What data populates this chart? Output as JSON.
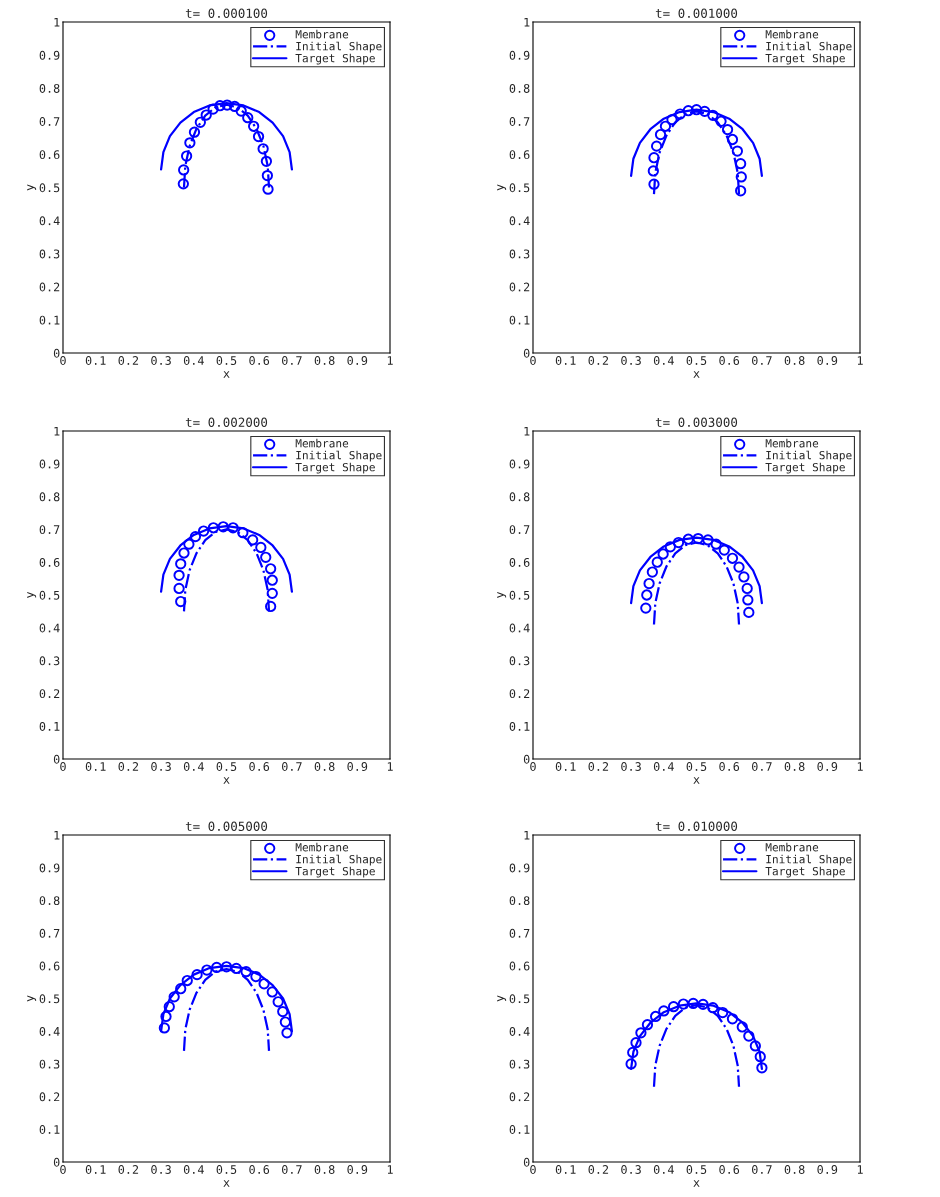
{
  "chart_data": [
    {
      "type": "scatter",
      "title": "t= 0.000100",
      "xlabel": "x",
      "ylabel": "y",
      "xlim": [
        0,
        1
      ],
      "ylim": [
        0,
        1
      ],
      "xticks": [
        0,
        0.1,
        0.2,
        0.3,
        0.4,
        0.5,
        0.6,
        0.7,
        0.8,
        0.9,
        1
      ],
      "yticks": [
        0,
        0.1,
        0.2,
        0.3,
        0.4,
        0.5,
        0.6,
        0.7,
        0.8,
        0.9,
        1
      ],
      "grid": false,
      "legend": "top right",
      "series": [
        {
          "name": "Membrane",
          "marker": "circle",
          "color": "#0000ff",
          "x": [
            0.368,
            0.369,
            0.378,
            0.388,
            0.402,
            0.42,
            0.438,
            0.459,
            0.48,
            0.502,
            0.525,
            0.545,
            0.565,
            0.583,
            0.598,
            0.612,
            0.622,
            0.625,
            0.627
          ],
          "values": [
            0.511,
            0.553,
            0.595,
            0.635,
            0.667,
            0.697,
            0.719,
            0.737,
            0.747,
            0.749,
            0.745,
            0.731,
            0.711,
            0.685,
            0.654,
            0.617,
            0.579,
            0.536,
            0.495
          ]
        },
        {
          "name": "Initial Shape",
          "type": "line",
          "line_style": "dashdot",
          "color": "#0000ff",
          "x": [
            0.37,
            0.374,
            0.387,
            0.408,
            0.435,
            0.466,
            0.5,
            0.534,
            0.565,
            0.592,
            0.613,
            0.626,
            0.63
          ],
          "values": [
            0.5,
            0.565,
            0.625,
            0.677,
            0.717,
            0.742,
            0.75,
            0.742,
            0.717,
            0.677,
            0.625,
            0.565,
            0.5
          ]
        },
        {
          "name": "Target Shape",
          "type": "line",
          "line_style": "solid",
          "color": "#0000ff",
          "x": [
            0.3,
            0.307,
            0.327,
            0.359,
            0.4,
            0.448,
            0.5,
            0.552,
            0.6,
            0.641,
            0.673,
            0.693,
            0.7
          ],
          "values": [
            0.555,
            0.607,
            0.655,
            0.696,
            0.728,
            0.748,
            0.755,
            0.748,
            0.728,
            0.696,
            0.655,
            0.607,
            0.555
          ]
        }
      ]
    },
    {
      "type": "scatter",
      "title": "t= 0.001000",
      "xlabel": "x",
      "ylabel": "y",
      "xlim": [
        0,
        1
      ],
      "ylim": [
        0,
        1
      ],
      "xticks": [
        0,
        0.1,
        0.2,
        0.3,
        0.4,
        0.5,
        0.6,
        0.7,
        0.8,
        0.9,
        1
      ],
      "yticks": [
        0,
        0.1,
        0.2,
        0.3,
        0.4,
        0.5,
        0.6,
        0.7,
        0.8,
        0.9,
        1
      ],
      "grid": false,
      "legend": "top right",
      "series": [
        {
          "name": "Membrane",
          "marker": "circle",
          "color": "#0000ff",
          "x": [
            0.37,
            0.368,
            0.37,
            0.378,
            0.39,
            0.405,
            0.425,
            0.45,
            0.475,
            0.5,
            0.525,
            0.55,
            0.575,
            0.595,
            0.61,
            0.625,
            0.635,
            0.637,
            0.635
          ],
          "values": [
            0.51,
            0.55,
            0.59,
            0.625,
            0.66,
            0.685,
            0.705,
            0.722,
            0.732,
            0.735,
            0.73,
            0.718,
            0.7,
            0.675,
            0.645,
            0.61,
            0.572,
            0.532,
            0.49
          ]
        },
        {
          "name": "Initial Shape",
          "type": "line",
          "line_style": "dashdot",
          "color": "#0000ff",
          "x": [
            0.37,
            0.374,
            0.387,
            0.408,
            0.435,
            0.466,
            0.5,
            0.534,
            0.565,
            0.592,
            0.613,
            0.626,
            0.63
          ],
          "values": [
            0.48,
            0.545,
            0.605,
            0.657,
            0.697,
            0.722,
            0.73,
            0.722,
            0.697,
            0.657,
            0.605,
            0.545,
            0.48
          ]
        },
        {
          "name": "Target Shape",
          "type": "line",
          "line_style": "solid",
          "color": "#0000ff",
          "x": [
            0.3,
            0.307,
            0.327,
            0.359,
            0.4,
            0.448,
            0.5,
            0.552,
            0.6,
            0.641,
            0.673,
            0.693,
            0.7
          ],
          "values": [
            0.535,
            0.587,
            0.635,
            0.676,
            0.708,
            0.728,
            0.735,
            0.728,
            0.708,
            0.676,
            0.635,
            0.587,
            0.535
          ]
        }
      ]
    },
    {
      "type": "scatter",
      "title": "t= 0.002000",
      "xlabel": "x",
      "ylabel": "y",
      "xlim": [
        0,
        1
      ],
      "ylim": [
        0,
        1
      ],
      "xticks": [
        0,
        0.1,
        0.2,
        0.3,
        0.4,
        0.5,
        0.6,
        0.7,
        0.8,
        0.9,
        1
      ],
      "yticks": [
        0,
        0.1,
        0.2,
        0.3,
        0.4,
        0.5,
        0.6,
        0.7,
        0.8,
        0.9,
        1
      ],
      "grid": false,
      "legend": "top right",
      "series": [
        {
          "name": "Membrane",
          "marker": "circle",
          "color": "#0000ff",
          "x": [
            0.36,
            0.355,
            0.355,
            0.36,
            0.37,
            0.385,
            0.405,
            0.43,
            0.46,
            0.49,
            0.52,
            0.55,
            0.58,
            0.605,
            0.62,
            0.635,
            0.64,
            0.64,
            0.635
          ],
          "values": [
            0.48,
            0.52,
            0.56,
            0.595,
            0.628,
            0.655,
            0.678,
            0.695,
            0.705,
            0.708,
            0.705,
            0.69,
            0.668,
            0.645,
            0.615,
            0.58,
            0.545,
            0.505,
            0.465
          ]
        },
        {
          "name": "Initial Shape",
          "type": "line",
          "line_style": "dashdot",
          "color": "#0000ff",
          "x": [
            0.37,
            0.374,
            0.387,
            0.408,
            0.435,
            0.466,
            0.5,
            0.534,
            0.565,
            0.592,
            0.613,
            0.626,
            0.63
          ],
          "values": [
            0.45,
            0.515,
            0.575,
            0.627,
            0.667,
            0.692,
            0.7,
            0.692,
            0.667,
            0.627,
            0.575,
            0.515,
            0.45
          ]
        },
        {
          "name": "Target Shape",
          "type": "line",
          "line_style": "solid",
          "color": "#0000ff",
          "x": [
            0.3,
            0.307,
            0.327,
            0.359,
            0.4,
            0.448,
            0.5,
            0.552,
            0.6,
            0.641,
            0.673,
            0.693,
            0.7
          ],
          "values": [
            0.51,
            0.562,
            0.61,
            0.651,
            0.683,
            0.703,
            0.71,
            0.703,
            0.683,
            0.651,
            0.61,
            0.562,
            0.51
          ]
        }
      ]
    },
    {
      "type": "scatter",
      "title": "t= 0.003000",
      "xlabel": "x",
      "ylabel": "y",
      "xlim": [
        0,
        1
      ],
      "ylim": [
        0,
        1
      ],
      "xticks": [
        0,
        0.1,
        0.2,
        0.3,
        0.4,
        0.5,
        0.6,
        0.7,
        0.8,
        0.9,
        1
      ],
      "yticks": [
        0,
        0.1,
        0.2,
        0.3,
        0.4,
        0.5,
        0.6,
        0.7,
        0.8,
        0.9,
        1
      ],
      "grid": false,
      "legend": "top right",
      "series": [
        {
          "name": "Membrane",
          "marker": "circle",
          "color": "#0000ff",
          "x": [
            0.345,
            0.348,
            0.355,
            0.365,
            0.38,
            0.398,
            0.42,
            0.445,
            0.475,
            0.505,
            0.535,
            0.56,
            0.585,
            0.61,
            0.63,
            0.645,
            0.655,
            0.657,
            0.66
          ],
          "values": [
            0.46,
            0.5,
            0.535,
            0.57,
            0.6,
            0.625,
            0.647,
            0.66,
            0.67,
            0.672,
            0.668,
            0.655,
            0.637,
            0.612,
            0.585,
            0.555,
            0.52,
            0.485,
            0.447
          ]
        },
        {
          "name": "Initial Shape",
          "type": "line",
          "line_style": "dashdot",
          "color": "#0000ff",
          "x": [
            0.37,
            0.374,
            0.387,
            0.408,
            0.435,
            0.466,
            0.5,
            0.534,
            0.565,
            0.592,
            0.613,
            0.626,
            0.63
          ],
          "values": [
            0.41,
            0.475,
            0.535,
            0.587,
            0.627,
            0.652,
            0.66,
            0.652,
            0.627,
            0.587,
            0.535,
            0.475,
            0.41
          ]
        },
        {
          "name": "Target Shape",
          "type": "line",
          "line_style": "solid",
          "color": "#0000ff",
          "x": [
            0.3,
            0.307,
            0.327,
            0.359,
            0.4,
            0.448,
            0.5,
            0.552,
            0.6,
            0.641,
            0.673,
            0.693,
            0.7
          ],
          "values": [
            0.475,
            0.527,
            0.575,
            0.616,
            0.648,
            0.668,
            0.675,
            0.668,
            0.648,
            0.616,
            0.575,
            0.527,
            0.475
          ]
        }
      ]
    },
    {
      "type": "scatter",
      "title": "t= 0.005000",
      "xlabel": "x",
      "ylabel": "y",
      "xlim": [
        0,
        1
      ],
      "ylim": [
        0,
        1
      ],
      "xticks": [
        0,
        0.1,
        0.2,
        0.3,
        0.4,
        0.5,
        0.6,
        0.7,
        0.8,
        0.9,
        1
      ],
      "yticks": [
        0,
        0.1,
        0.2,
        0.3,
        0.4,
        0.5,
        0.6,
        0.7,
        0.8,
        0.9,
        1
      ],
      "grid": false,
      "legend": "top right",
      "series": [
        {
          "name": "Membrane",
          "marker": "circle",
          "color": "#0000ff",
          "x": [
            0.31,
            0.315,
            0.325,
            0.34,
            0.36,
            0.38,
            0.41,
            0.44,
            0.47,
            0.5,
            0.53,
            0.56,
            0.59,
            0.615,
            0.64,
            0.658,
            0.672,
            0.68,
            0.685
          ],
          "values": [
            0.41,
            0.445,
            0.475,
            0.505,
            0.53,
            0.555,
            0.573,
            0.587,
            0.595,
            0.597,
            0.592,
            0.582,
            0.567,
            0.545,
            0.52,
            0.49,
            0.46,
            0.428,
            0.395
          ]
        },
        {
          "name": "Initial Shape",
          "type": "line",
          "line_style": "dashdot",
          "color": "#0000ff",
          "x": [
            0.37,
            0.374,
            0.387,
            0.408,
            0.435,
            0.466,
            0.5,
            0.534,
            0.565,
            0.592,
            0.613,
            0.626,
            0.63
          ],
          "values": [
            0.34,
            0.405,
            0.465,
            0.517,
            0.557,
            0.582,
            0.59,
            0.582,
            0.557,
            0.517,
            0.465,
            0.405,
            0.34
          ]
        },
        {
          "name": "Target Shape",
          "type": "line",
          "line_style": "solid",
          "color": "#0000ff",
          "x": [
            0.3,
            0.307,
            0.327,
            0.359,
            0.4,
            0.448,
            0.5,
            0.552,
            0.6,
            0.641,
            0.673,
            0.693,
            0.7
          ],
          "values": [
            0.4,
            0.452,
            0.5,
            0.541,
            0.573,
            0.593,
            0.6,
            0.593,
            0.573,
            0.541,
            0.5,
            0.452,
            0.4
          ]
        }
      ]
    },
    {
      "type": "scatter",
      "title": "t= 0.010000",
      "xlabel": "x",
      "ylabel": "y",
      "xlim": [
        0,
        1
      ],
      "ylim": [
        0,
        1
      ],
      "xticks": [
        0,
        0.1,
        0.2,
        0.3,
        0.4,
        0.5,
        0.6,
        0.7,
        0.8,
        0.9,
        1
      ],
      "yticks": [
        0,
        0.1,
        0.2,
        0.3,
        0.4,
        0.5,
        0.6,
        0.7,
        0.8,
        0.9,
        1
      ],
      "grid": false,
      "legend": "top right",
      "series": [
        {
          "name": "Membrane",
          "marker": "circle",
          "color": "#0000ff",
          "x": [
            0.3,
            0.305,
            0.315,
            0.33,
            0.35,
            0.375,
            0.4,
            0.43,
            0.46,
            0.49,
            0.52,
            0.55,
            0.58,
            0.61,
            0.64,
            0.66,
            0.68,
            0.695,
            0.7
          ],
          "values": [
            0.3,
            0.335,
            0.365,
            0.395,
            0.42,
            0.445,
            0.462,
            0.475,
            0.483,
            0.485,
            0.482,
            0.472,
            0.457,
            0.438,
            0.413,
            0.385,
            0.355,
            0.322,
            0.288
          ]
        },
        {
          "name": "Initial Shape",
          "type": "line",
          "line_style": "dashdot",
          "color": "#0000ff",
          "x": [
            0.37,
            0.374,
            0.387,
            0.408,
            0.435,
            0.466,
            0.5,
            0.534,
            0.565,
            0.592,
            0.613,
            0.626,
            0.63
          ],
          "values": [
            0.23,
            0.295,
            0.355,
            0.407,
            0.447,
            0.472,
            0.48,
            0.472,
            0.447,
            0.407,
            0.355,
            0.295,
            0.23
          ]
        },
        {
          "name": "Target Shape",
          "type": "line",
          "line_style": "solid",
          "color": "#0000ff",
          "x": [
            0.3,
            0.307,
            0.327,
            0.359,
            0.4,
            0.448,
            0.5,
            0.552,
            0.6,
            0.641,
            0.673,
            0.693,
            0.7
          ],
          "values": [
            0.285,
            0.337,
            0.385,
            0.426,
            0.458,
            0.478,
            0.485,
            0.478,
            0.458,
            0.426,
            0.385,
            0.337,
            0.285
          ]
        }
      ]
    }
  ]
}
